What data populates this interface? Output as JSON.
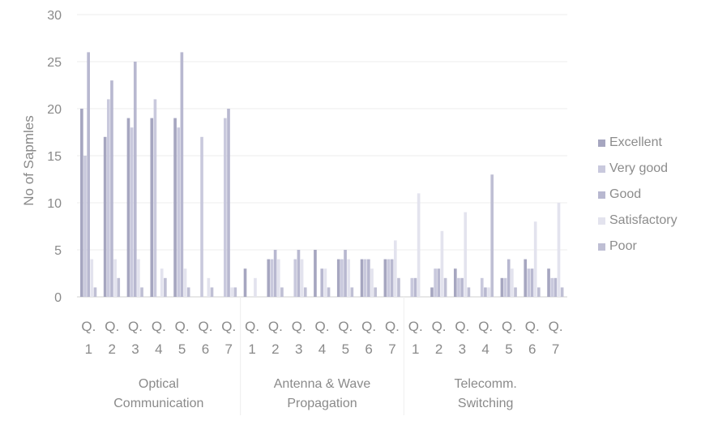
{
  "chart_data": {
    "type": "bar",
    "title": "",
    "xlabel": "",
    "ylabel": "No of Sapmles",
    "ylim": [
      0,
      30
    ],
    "yticks": [
      "0",
      "5",
      "10",
      "15",
      "20",
      "25",
      "30"
    ],
    "grid": true,
    "legend_position": "right",
    "groups": [
      {
        "label": "Optical Communication",
        "categories": [
          "Q.1",
          "Q.2",
          "Q.3",
          "Q.4",
          "Q.5",
          "Q.6",
          "Q.7"
        ]
      },
      {
        "label": "Antenna & Wave Propagation",
        "categories": [
          "Q.1",
          "Q.2",
          "Q.3",
          "Q.4",
          "Q.5",
          "Q.6",
          "Q.7"
        ]
      },
      {
        "label": "Telecomm. Switching",
        "categories": [
          "Q.1",
          "Q.2",
          "Q.3",
          "Q.4",
          "Q.5",
          "Q.6",
          "Q.7"
        ]
      }
    ],
    "series": [
      {
        "name": "Excellent",
        "color": "#a6a6c0",
        "values": [
          20,
          17,
          19,
          19,
          19,
          0,
          0,
          3,
          4,
          0,
          5,
          4,
          4,
          4,
          0,
          1,
          3,
          0,
          2,
          4,
          3
        ]
      },
      {
        "name": "Very good",
        "color": "#c9c9dd",
        "values": [
          15,
          21,
          18,
          21,
          18,
          17,
          19,
          0,
          4,
          4,
          0,
          4,
          4,
          4,
          2,
          3,
          2,
          2,
          2,
          3,
          2
        ]
      },
      {
        "name": "Good",
        "color": "#b8b8d0",
        "values": [
          26,
          23,
          25,
          0,
          26,
          0,
          20,
          0,
          5,
          5,
          3,
          5,
          4,
          4,
          2,
          3,
          2,
          1,
          4,
          3,
          2
        ]
      },
      {
        "name": "Satisfactory",
        "color": "#e3e3ee",
        "values": [
          4,
          4,
          4,
          3,
          3,
          2,
          1,
          2,
          4,
          4,
          3,
          4,
          3,
          6,
          11,
          7,
          9,
          1,
          3,
          8,
          10
        ]
      },
      {
        "name": "Poor",
        "color": "#bfbfd4",
        "values": [
          1,
          2,
          1,
          2,
          1,
          1,
          1,
          0,
          1,
          1,
          1,
          1,
          1,
          2,
          0,
          2,
          1,
          13,
          1,
          1,
          1
        ]
      }
    ]
  }
}
